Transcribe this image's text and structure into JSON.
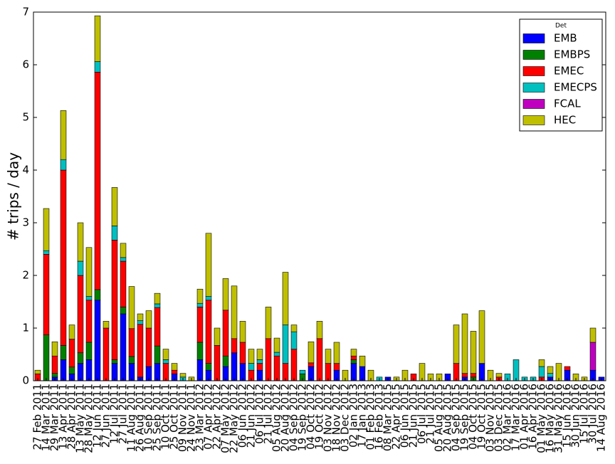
{
  "chart_data": {
    "type": "stacked_bar",
    "y_label": "# trips / day",
    "legend_title": "Det",
    "legend_position": "upper right",
    "grid": false,
    "ylim": [
      0,
      7
    ],
    "yticks": [
      0,
      1,
      2,
      3,
      4,
      5,
      6,
      7
    ],
    "categories": [
      "27 Feb 2011",
      "14 Mar 2011",
      "29 Mar 2011",
      "13 Apr 2011",
      "28 Apr 2011",
      "13 May 2011",
      "28 May 2011",
      "12 Jun 2011",
      "27 Jun 2011",
      "12 Jul 2011",
      "27 Jul 2011",
      "11 Aug 2011",
      "26 Aug 2011",
      "10 Sep 2011",
      "25 Sep 2011",
      "10 Oct 2011",
      "25 Oct 2011",
      "09 Nov 2011",
      "24 Nov 2011",
      "23 Mar 2012",
      "07 Apr 2012",
      "22 Apr 2012",
      "07 May 2012",
      "22 May 2012",
      "06 Jun 2012",
      "21 Jun 2012",
      "06 Jul 2012",
      "21 Jul 2012",
      "05 Aug 2012",
      "20 Aug 2012",
      "04 Sep 2012",
      "19 Sep 2012",
      "04 Oct 2012",
      "19 Oct 2012",
      "03 Nov 2012",
      "18 Nov 2012",
      "03 Dec 2012",
      "02 Jan 2013",
      "17 Jan 2013",
      "01 Feb 2013",
      "16 Feb 2013",
      "08 Mar 2015",
      "22 Apr 2015",
      "06 Jun 2015",
      "21 Jun 2015",
      "06 Jul 2015",
      "21 Jul 2015",
      "05 Aug 2015",
      "20 Aug 2015",
      "04 Sep 2015",
      "19 Sep 2015",
      "04 Oct 2015",
      "19 Oct 2015",
      "03 Nov 2015",
      "03 Dec 2015",
      "02 Mar 2016",
      "17 Mar 2016",
      "01 Apr 2016",
      "16 Apr 2016",
      "01 May 2016",
      "16 May 2016",
      "31 May 2016",
      "15 Jun 2016",
      "30 Jun 2016",
      "15 Jul 2016",
      "30 Jul 2016",
      "14 Aug 2016"
    ],
    "series": [
      {
        "name": "EMB",
        "color": "#0000ff",
        "values": [
          0,
          0,
          0.07,
          0.4,
          0.13,
          0.33,
          0.4,
          1.53,
          0,
          0.33,
          1.27,
          0.33,
          0.07,
          0.27,
          0.33,
          0,
          0.13,
          0,
          0,
          0.4,
          0.2,
          0,
          0.27,
          0.53,
          0.33,
          0,
          0.2,
          0,
          0,
          0,
          0,
          0,
          0.27,
          0,
          0,
          0.2,
          0,
          0.33,
          0.27,
          0,
          0,
          0.07,
          0,
          0,
          0,
          0,
          0,
          0,
          0.13,
          0,
          0.07,
          0,
          0.33,
          0,
          0,
          0,
          0,
          0,
          0,
          0,
          0.07,
          0,
          0.2,
          0,
          0,
          0.2,
          0.07
        ]
      },
      {
        "name": "EMBPS",
        "color": "#008000",
        "values": [
          0,
          0.87,
          0.07,
          0.27,
          0.13,
          0.2,
          0.33,
          0.2,
          0,
          0.07,
          0.13,
          0.13,
          0,
          0,
          0.33,
          0,
          0,
          0,
          0,
          0.33,
          0.13,
          0,
          0.2,
          0,
          0,
          0,
          0,
          0,
          0,
          0,
          0,
          0.13,
          0,
          0,
          0,
          0,
          0,
          0.07,
          0,
          0,
          0,
          0,
          0,
          0,
          0,
          0,
          0,
          0,
          0,
          0,
          0,
          0.07,
          0,
          0,
          0,
          0,
          0,
          0,
          0,
          0,
          0,
          0,
          0,
          0,
          0,
          0,
          0
        ]
      },
      {
        "name": "EMEC",
        "color": "#ff0000",
        "values": [
          0.13,
          1.53,
          0.33,
          3.33,
          0.53,
          1.47,
          0.8,
          4.13,
          1.0,
          2.27,
          0.87,
          0.53,
          1.0,
          0.73,
          0.73,
          0.33,
          0.07,
          0,
          0,
          0.67,
          1.2,
          0.67,
          0.87,
          0.27,
          0.4,
          0.2,
          0.13,
          0.8,
          0.47,
          0.33,
          0.6,
          0,
          0.07,
          0.8,
          0.33,
          0.13,
          0,
          0.07,
          0,
          0,
          0,
          0,
          0,
          0,
          0.13,
          0,
          0,
          0,
          0,
          0.33,
          0.07,
          0.07,
          0,
          0,
          0.07,
          0,
          0,
          0,
          0,
          0.07,
          0,
          0,
          0.07,
          0,
          0,
          0,
          0
        ]
      },
      {
        "name": "EMECPS",
        "color": "#00bfbf",
        "values": [
          0,
          0.07,
          0,
          0.2,
          0,
          0.27,
          0.07,
          0.2,
          0,
          0.27,
          0.07,
          0,
          0.07,
          0,
          0.07,
          0.07,
          0,
          0.07,
          0,
          0.07,
          0.07,
          0,
          0,
          0,
          0,
          0.13,
          0.07,
          0,
          0.07,
          0.73,
          0.33,
          0.07,
          0,
          0,
          0,
          0,
          0,
          0,
          0,
          0,
          0.07,
          0,
          0,
          0,
          0,
          0,
          0,
          0,
          0,
          0,
          0,
          0,
          0,
          0,
          0,
          0.13,
          0.4,
          0.07,
          0.07,
          0.2,
          0.07,
          0,
          0,
          0,
          0,
          0,
          0
        ]
      },
      {
        "name": "FCAL",
        "color": "#bf00bf",
        "values": [
          0,
          0,
          0,
          0,
          0,
          0,
          0,
          0,
          0,
          0,
          0,
          0,
          0,
          0,
          0,
          0,
          0,
          0,
          0,
          0,
          0,
          0,
          0,
          0,
          0,
          0,
          0,
          0,
          0,
          0,
          0,
          0,
          0,
          0,
          0,
          0,
          0,
          0,
          0,
          0,
          0,
          0,
          0,
          0,
          0,
          0,
          0,
          0,
          0,
          0,
          0,
          0,
          0,
          0,
          0,
          0,
          0,
          0,
          0,
          0,
          0,
          0,
          0,
          0,
          0,
          0.53,
          0
        ]
      },
      {
        "name": "HEC",
        "color": "#bfbf00",
        "values": [
          0.07,
          0.8,
          0.27,
          0.93,
          0.27,
          0.73,
          0.93,
          0.87,
          0.13,
          0.73,
          0.27,
          0.8,
          0.13,
          0.33,
          0.2,
          0.2,
          0.13,
          0.07,
          0.07,
          0.27,
          1.2,
          0.33,
          0.6,
          1.0,
          0.4,
          0.27,
          0.2,
          0.6,
          0.27,
          1.0,
          0.13,
          0,
          0.4,
          0.33,
          0.27,
          0.4,
          0.2,
          0.13,
          0.2,
          0.2,
          0,
          0,
          0.07,
          0.2,
          0,
          0.33,
          0.13,
          0.13,
          0,
          0.73,
          1.13,
          0.8,
          1.0,
          0.2,
          0.07,
          0,
          0,
          0,
          0,
          0.13,
          0.13,
          0.33,
          0,
          0.13,
          0.07,
          0.27,
          0
        ]
      }
    ]
  }
}
